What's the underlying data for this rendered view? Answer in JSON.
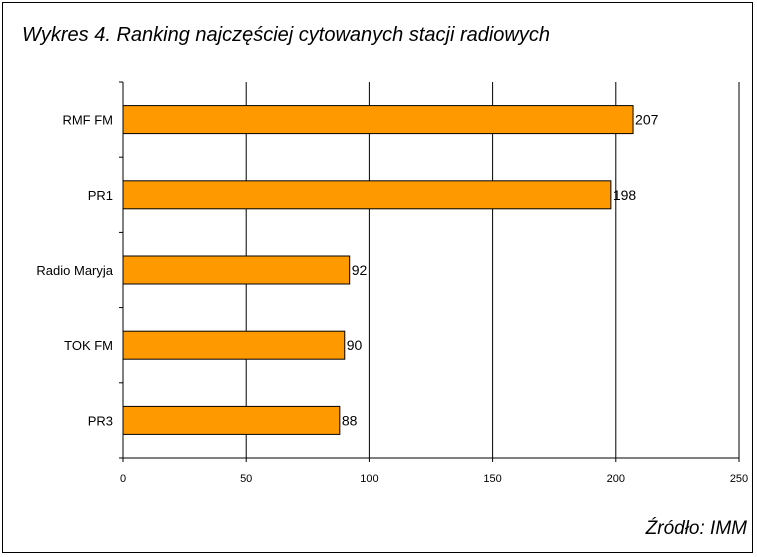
{
  "chart_data": {
    "type": "bar",
    "orientation": "horizontal",
    "title": "Wykres 4. Ranking najczęściej cytowanych stacji radiowych",
    "source": "Źródło: IMM",
    "categories": [
      "RMF FM",
      "PR1",
      "Radio Maryja",
      "TOK FM",
      "PR3"
    ],
    "values": [
      207,
      198,
      92,
      90,
      88
    ],
    "xlim": [
      0,
      250
    ],
    "xticks": [
      0,
      50,
      100,
      150,
      200,
      250
    ],
    "grid": true,
    "legend": "none",
    "colors": {
      "bar": "#FF9900",
      "bar_stroke": "#000000",
      "grid": "#000000"
    }
  }
}
